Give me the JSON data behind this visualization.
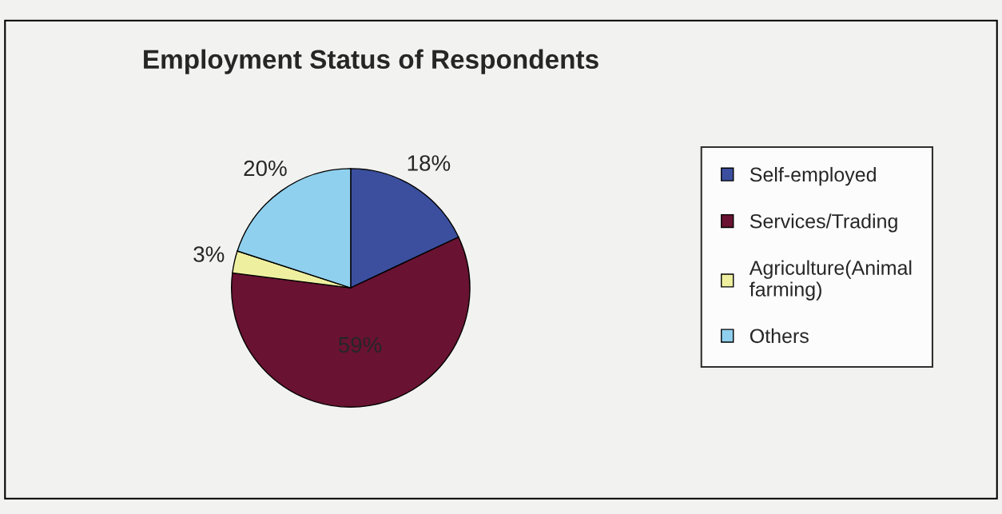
{
  "chart_data": {
    "type": "pie",
    "title": "Employment Status of Respondents",
    "categories": [
      "Self-employed",
      "Services/Trading",
      "Agriculture(Animal farming)",
      "Others"
    ],
    "values": [
      18,
      59,
      3,
      20
    ],
    "colors": [
      "#3b4f9e",
      "#6a1232",
      "#eef0a0",
      "#8fd0ee"
    ],
    "value_labels": [
      "18%",
      "59%",
      "3%",
      "20%"
    ],
    "legend": "right"
  }
}
